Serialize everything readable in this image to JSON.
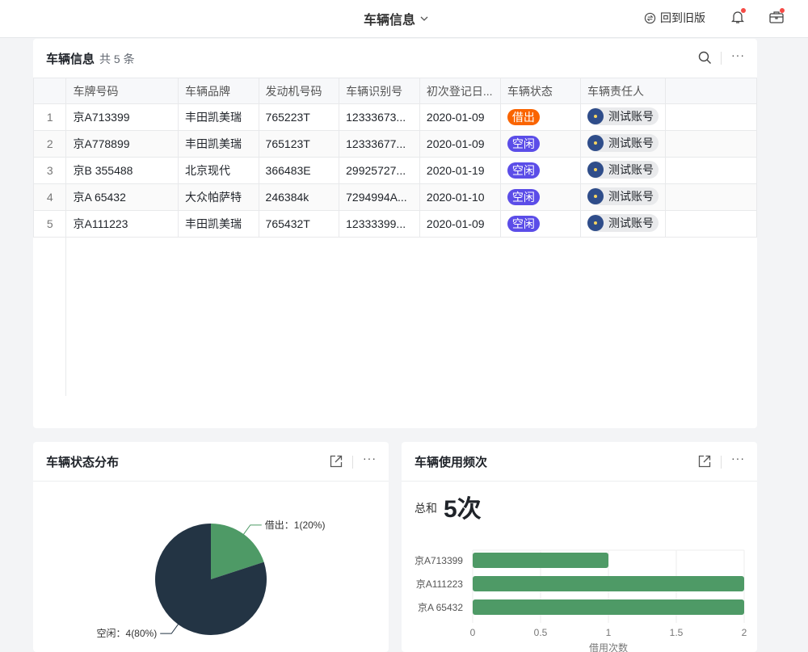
{
  "header": {
    "title": "车辆信息",
    "old_version": "回到旧版",
    "icons": [
      "chevron-down-icon",
      "swap-icon",
      "bell-icon",
      "briefcase-icon"
    ]
  },
  "table_card": {
    "title": "车辆信息",
    "count": "共 5 条",
    "columns": [
      "车牌号码",
      "车辆品牌",
      "发动机号码",
      "车辆识别号",
      "初次登记日...",
      "车辆状态",
      "车辆责任人"
    ],
    "rows": [
      {
        "idx": "1",
        "plate": "京A713399",
        "brand": "丰田凯美瑞",
        "engine": "765223T",
        "vin": "12333673...",
        "date": "2020-01-09",
        "status": "借出",
        "owner": "测试账号"
      },
      {
        "idx": "2",
        "plate": "京A778899",
        "brand": "丰田凯美瑞",
        "engine": "765123T",
        "vin": "12333677...",
        "date": "2020-01-09",
        "status": "空闲",
        "owner": "测试账号"
      },
      {
        "idx": "3",
        "plate": "京B 355488",
        "brand": "北京现代",
        "engine": "366483E",
        "vin": "29925727...",
        "date": "2020-01-19",
        "status": "空闲",
        "owner": "测试账号"
      },
      {
        "idx": "4",
        "plate": "京A 65432",
        "brand": "大众帕萨特",
        "engine": "246384k",
        "vin": "7294994A...",
        "date": "2020-01-10",
        "status": "空闲",
        "owner": "测试账号"
      },
      {
        "idx": "5",
        "plate": "京A111223",
        "brand": "丰田凯美瑞",
        "engine": "765432T",
        "vin": "12333399...",
        "date": "2020-01-09",
        "status": "空闲",
        "owner": "测试账号"
      }
    ],
    "status_colors": {
      "借出": "#fa6400",
      "空闲": "#5b4de8"
    }
  },
  "pie_card": {
    "title": "车辆状态分布"
  },
  "bar_card": {
    "title": "车辆使用频次",
    "total_label": "总和",
    "total_value": "5次"
  },
  "chart_data": [
    {
      "type": "pie",
      "slices": [
        {
          "label": "借出",
          "value": 1,
          "text": "借出：1(20%)",
          "color": "#4e9a66"
        },
        {
          "label": "空闲",
          "value": 4,
          "text": "空闲：4(80%)",
          "color": "#233444"
        }
      ]
    },
    {
      "type": "bar",
      "orientation": "horizontal",
      "categories": [
        "京A713399",
        "京A111223",
        "京A 65432"
      ],
      "values": [
        1,
        2,
        2
      ],
      "xlim": [
        0,
        2
      ],
      "xticks": [
        "0",
        "0.5",
        "1",
        "1.5",
        "2"
      ],
      "xlabel": "借用次数",
      "color": "#4e9a66",
      "grid": true
    }
  ]
}
